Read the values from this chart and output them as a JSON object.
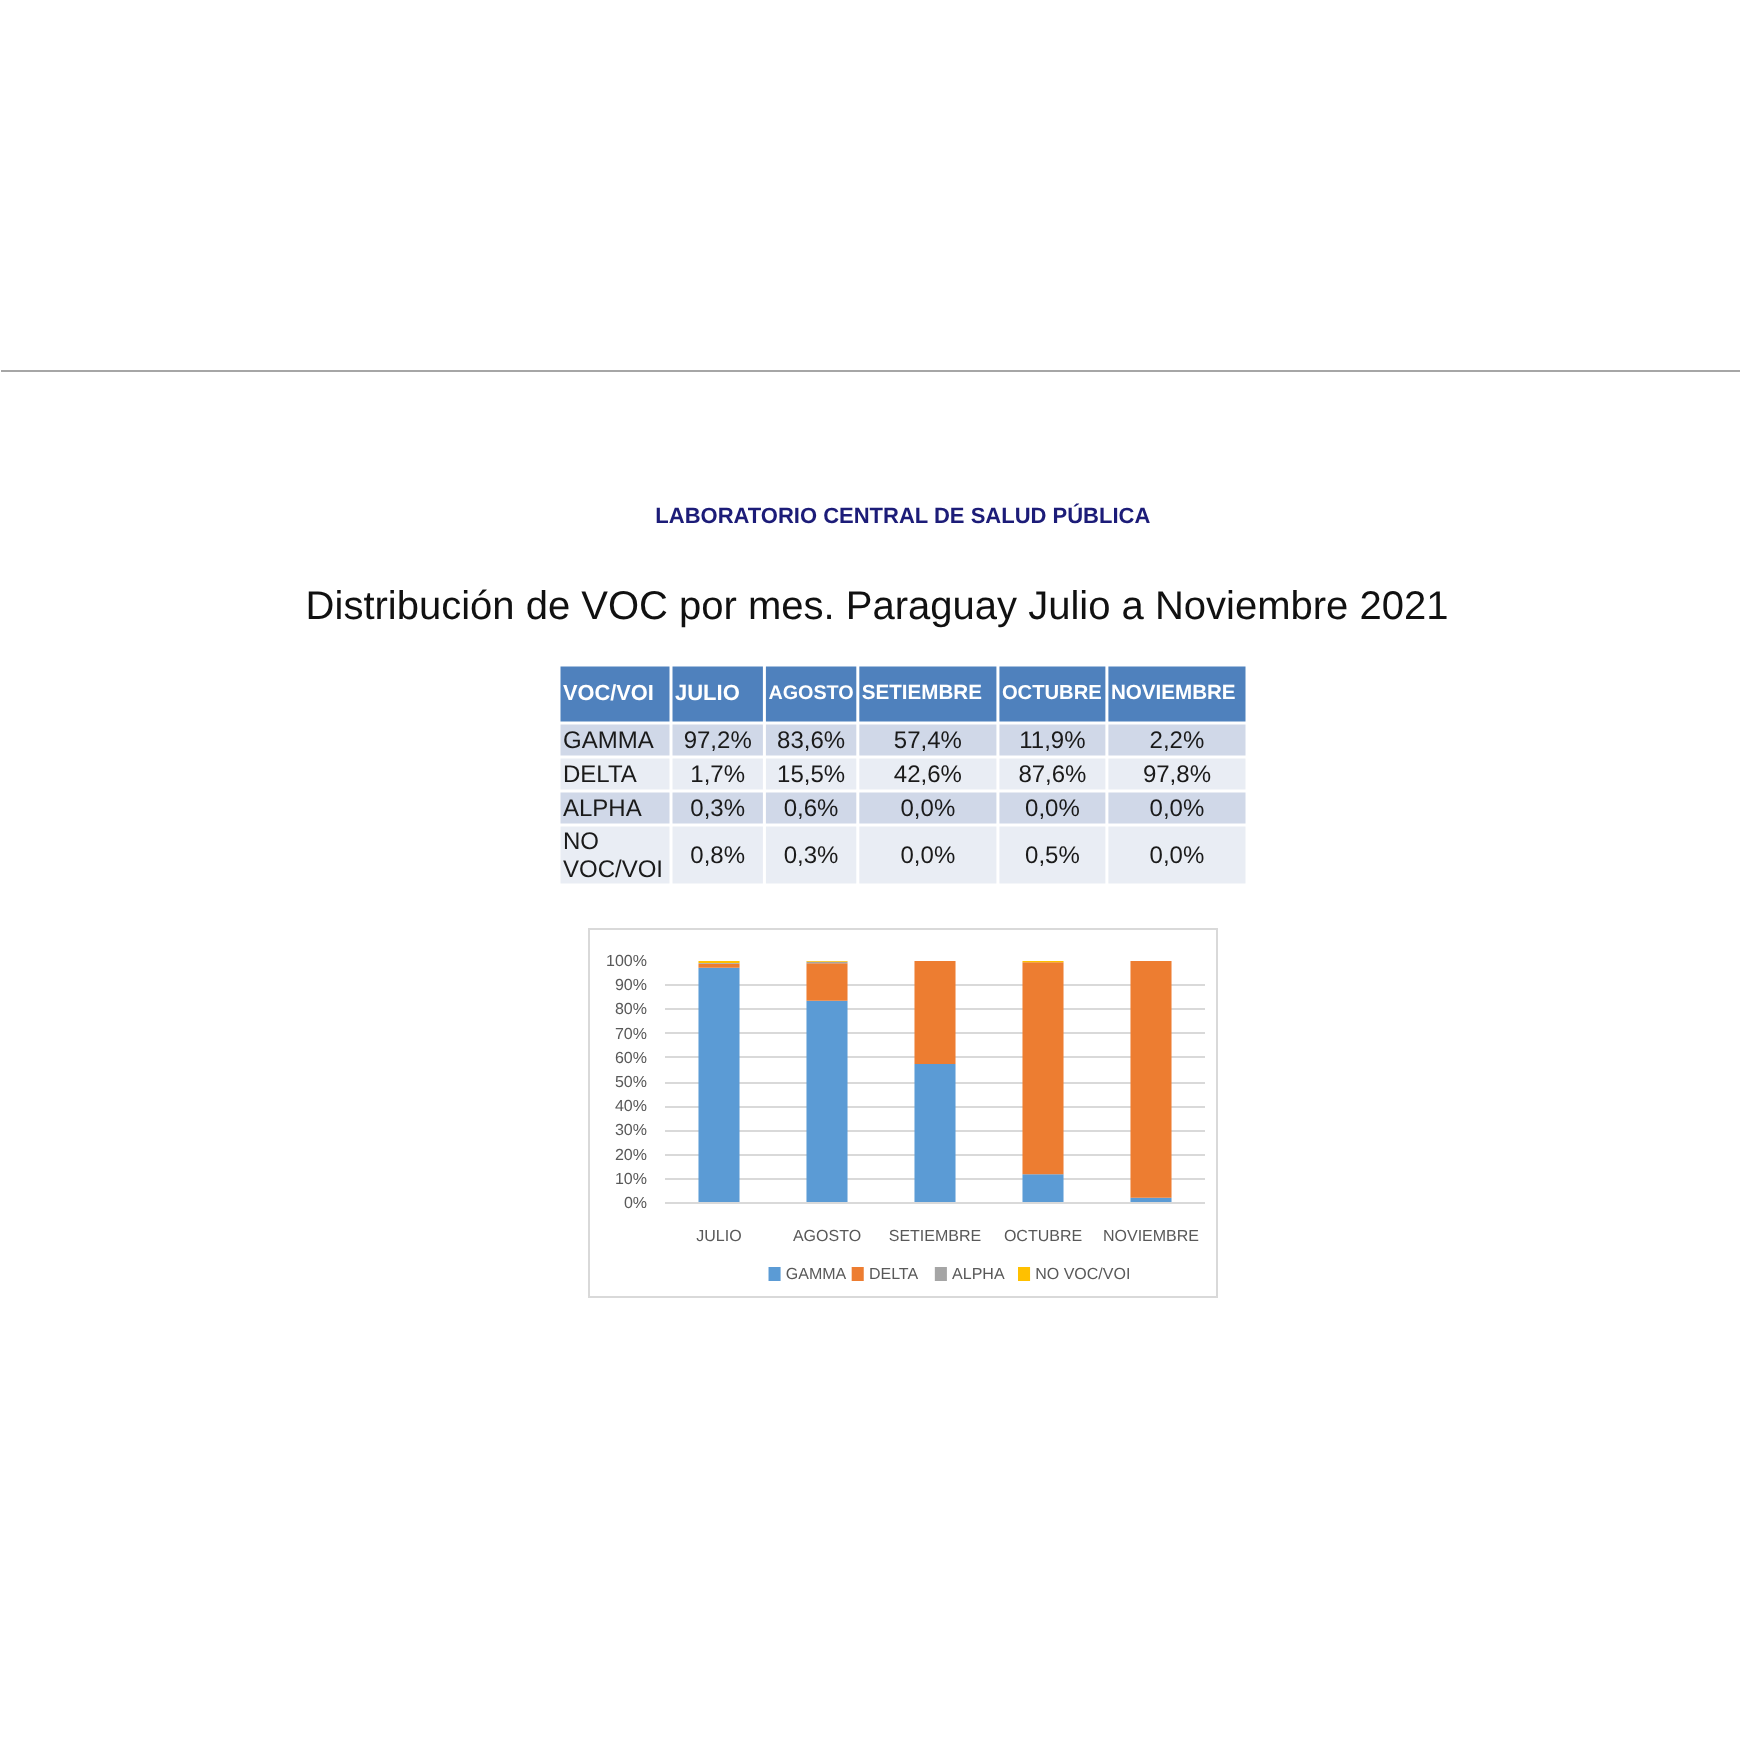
{
  "chart_data": {
    "type": "bar",
    "title": "Distribución de VOC por mes. Paraguay Julio a Noviembre 2021",
    "annotations": [
      "LABORATORIO CENTRAL DE SALUD PÚBLICA",
      "VOC/VOI"
    ],
    "categories": [
      "JULIO",
      "AGOSTO",
      "SETIEMBRE",
      "OCTUBRE",
      "NOVIEMBRE"
    ],
    "stacked": true,
    "series": [
      {
        "name": "GAMMA",
        "color": "#5b9bd5",
        "values": [
          97.2,
          83.6,
          57.4,
          11.9,
          2.2
        ],
        "value_labels": [
          "97,2%",
          "83,6%",
          "57,4%",
          "11,9%",
          "2,2%"
        ]
      },
      {
        "name": "DELTA",
        "color": "#ed7d31",
        "values": [
          1.7,
          15.5,
          42.6,
          87.6,
          97.8
        ],
        "value_labels": [
          "1,7%",
          "15,5%",
          "42,6%",
          "87,6%",
          "97,8%"
        ]
      },
      {
        "name": "ALPHA",
        "color": "#a5a5a5",
        "values": [
          0.3,
          0.6,
          0.0,
          0.0,
          0.0
        ],
        "value_labels": [
          "0,3%",
          "0,6%",
          "0,0%",
          "0,0%",
          "0,0%"
        ]
      },
      {
        "name": "NO VOC/VOI",
        "color": "#ffc000",
        "values": [
          0.8,
          0.3,
          0.0,
          0.5,
          0.0
        ],
        "value_labels": [
          "0,8%",
          "0,3%",
          "0,0%",
          "0,5%",
          "0,0%"
        ]
      }
    ],
    "ylim": [
      0,
      100
    ],
    "yticks": [
      {
        "value": 0,
        "label": "0%"
      },
      {
        "value": 10,
        "label": "10%"
      },
      {
        "value": 20,
        "label": "20%"
      },
      {
        "value": 30,
        "label": "30%"
      },
      {
        "value": 40,
        "label": "40%"
      },
      {
        "value": 50,
        "label": "50%"
      },
      {
        "value": 60,
        "label": "60%"
      },
      {
        "value": 70,
        "label": "70%"
      },
      {
        "value": 80,
        "label": "80%"
      },
      {
        "value": 90,
        "label": "90%"
      },
      {
        "value": 100,
        "label": "100%"
      }
    ],
    "grid": "y",
    "legend": "bottom"
  }
}
